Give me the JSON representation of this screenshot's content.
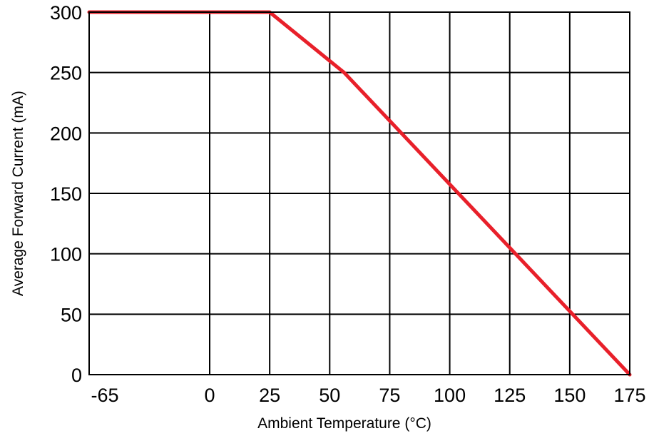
{
  "chart_data": {
    "type": "line",
    "title": "",
    "xlabel": "Ambient Temperature (°C)",
    "ylabel": "Average Forward Current (mA)",
    "xlim": [
      -65,
      175
    ],
    "ylim": [
      0,
      300
    ],
    "xticks": [
      -65,
      0,
      25,
      50,
      75,
      100,
      125,
      150,
      175
    ],
    "yticks": [
      0,
      50,
      100,
      150,
      200,
      250,
      300
    ],
    "x_tick_labels": [
      "-65",
      "0",
      "25",
      "50",
      "75",
      "100",
      "125",
      "150",
      "175"
    ],
    "y_tick_labels": [
      "0",
      "50",
      "100",
      "150",
      "200",
      "250",
      "300"
    ],
    "grid": true,
    "series": [
      {
        "x": [
          -65,
          25,
          56,
          175
        ],
        "y": [
          300,
          300,
          250,
          0
        ],
        "color": "#e8202a"
      }
    ]
  }
}
